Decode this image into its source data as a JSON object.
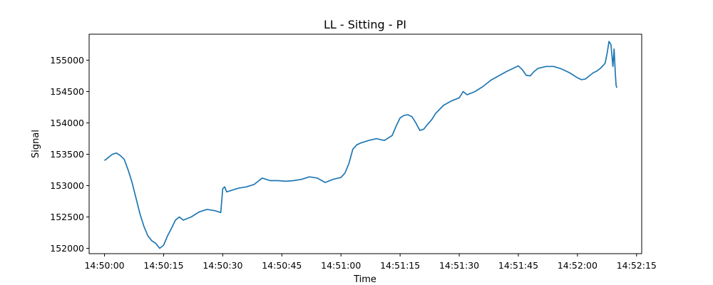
{
  "chart_data": {
    "type": "line",
    "title": "LL - Sitting - PI",
    "xlabel": "Time",
    "ylabel": "Signal",
    "x_ticks": [
      "14:50:00",
      "14:50:15",
      "14:50:30",
      "14:50:45",
      "14:51:00",
      "14:51:15",
      "14:51:30",
      "14:51:45",
      "14:52:00",
      "14:52:15"
    ],
    "y_ticks": [
      152000,
      152500,
      153000,
      153500,
      154000,
      154500,
      155000
    ],
    "xlim": [
      "14:49:56.1",
      "14:52:16.3"
    ],
    "ylim": [
      151915,
      155415
    ],
    "grid": false,
    "series": [
      {
        "color": "#1f77b4",
        "x": [
          "14:50:00.0",
          "14:50:01.0",
          "14:50:02.0",
          "14:50:03.0",
          "14:50:03.5",
          "14:50:04.0",
          "14:50:05.0",
          "14:50:06.0",
          "14:50:07.0",
          "14:50:08.0",
          "14:50:09.0",
          "14:50:10.0",
          "14:50:11.0",
          "14:50:12.0",
          "14:50:13.0",
          "14:50:14.0",
          "14:50:15.0",
          "14:50:16.0",
          "14:50:17.0",
          "14:50:18.0",
          "14:50:19.0",
          "14:50:20.0",
          "14:50:22.0",
          "14:50:24.0",
          "14:50:26.0",
          "14:50:28.0",
          "14:50:29.5",
          "14:50:30.0",
          "14:50:30.5",
          "14:50:31.0",
          "14:50:32.0",
          "14:50:34.0",
          "14:50:36.0",
          "14:50:38.0",
          "14:50:40.0",
          "14:50:42.0",
          "14:50:44.0",
          "14:50:46.0",
          "14:50:48.0",
          "14:50:50.0",
          "14:50:52.0",
          "14:50:54.0",
          "14:50:56.0",
          "14:50:58.0",
          "14:51:00.0",
          "14:51:01.0",
          "14:51:02.0",
          "14:51:03.0",
          "14:51:04.0",
          "14:51:05.0",
          "14:51:07.0",
          "14:51:09.0",
          "14:51:11.0",
          "14:51:13.0",
          "14:51:14.0",
          "14:51:15.0",
          "14:51:16.0",
          "14:51:17.0",
          "14:51:18.0",
          "14:51:19.0",
          "14:51:20.0",
          "14:51:21.0",
          "14:51:22.0",
          "14:51:23.0",
          "14:51:24.0",
          "14:51:26.0",
          "14:51:28.0",
          "14:51:30.0",
          "14:51:31.0",
          "14:51:32.0",
          "14:51:34.0",
          "14:51:36.0",
          "14:51:38.0",
          "14:51:40.0",
          "14:51:42.0",
          "14:51:44.0",
          "14:51:45.0",
          "14:51:46.0",
          "14:51:47.0",
          "14:51:48.0",
          "14:51:49.0",
          "14:51:50.0",
          "14:51:52.0",
          "14:51:54.0",
          "14:51:56.0",
          "14:51:58.0",
          "14:52:00.0",
          "14:52:01.0",
          "14:52:02.0",
          "14:52:03.0",
          "14:52:04.0",
          "14:52:05.0",
          "14:52:06.0",
          "14:52:07.0",
          "14:52:07.5",
          "14:52:08.0",
          "14:52:08.5",
          "14:52:09.0",
          "14:52:09.3",
          "14:52:09.6",
          "14:52:09.8",
          "14:52:10.0"
        ],
        "y": [
          153400,
          153450,
          153500,
          153520,
          153500,
          153480,
          153420,
          153250,
          153050,
          152800,
          152550,
          152350,
          152200,
          152120,
          152080,
          152000,
          152050,
          152200,
          152320,
          152450,
          152500,
          152450,
          152500,
          152580,
          152620,
          152600,
          152570,
          152950,
          152980,
          152900,
          152920,
          152960,
          152980,
          153020,
          153120,
          153080,
          153080,
          153070,
          153080,
          153100,
          153140,
          153120,
          153050,
          153100,
          153130,
          153200,
          153350,
          153580,
          153650,
          153680,
          153720,
          153750,
          153720,
          153800,
          153950,
          154080,
          154120,
          154130,
          154100,
          154000,
          153880,
          153900,
          153980,
          154050,
          154150,
          154280,
          154350,
          154400,
          154500,
          154450,
          154500,
          154580,
          154680,
          154750,
          154820,
          154880,
          154910,
          154850,
          154760,
          154750,
          154820,
          154870,
          154900,
          154900,
          154860,
          154800,
          154720,
          154690,
          154700,
          154750,
          154800,
          154830,
          154880,
          154950,
          155100,
          155300,
          155250,
          154900,
          155180,
          154800,
          154600,
          154560
        ]
      }
    ]
  }
}
